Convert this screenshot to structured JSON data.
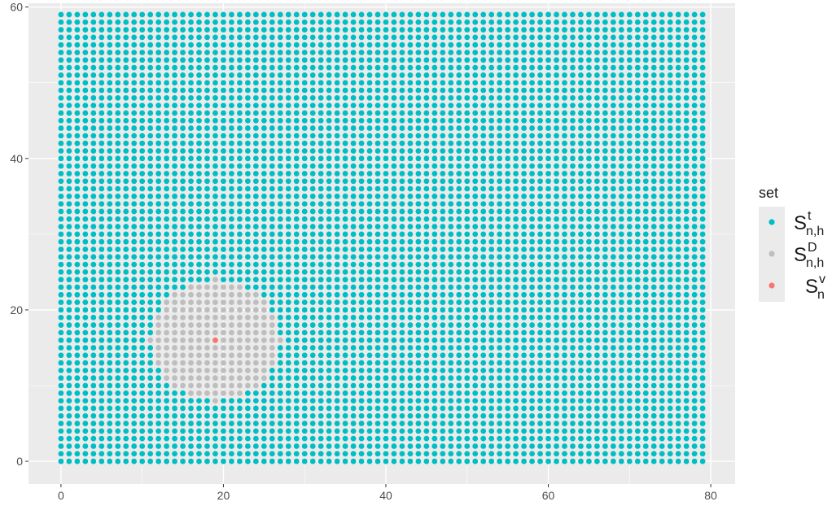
{
  "chart_data": {
    "type": "scatter",
    "title": "",
    "xlabel": "",
    "ylabel": "",
    "xlim": [
      -4,
      83
    ],
    "ylim": [
      -3,
      60.5
    ],
    "x_ticks": [
      0,
      20,
      40,
      60,
      80
    ],
    "y_ticks": [
      0,
      20,
      40,
      60
    ],
    "x_tick_labels": [
      "0",
      "20",
      "40",
      "60",
      "80"
    ],
    "y_tick_labels": [
      "0",
      "20",
      "40",
      "60"
    ],
    "grid": true,
    "grid_description": "integer lattice, x = 0..79, y = 0..59, step 1",
    "legend_position": "right",
    "legend_title": "set",
    "series": [
      {
        "key": "t",
        "main": "S",
        "sup": "t",
        "sub": "n,h",
        "color": "#00BFC4",
        "description": "all remaining grid points x = 0..79, y = 0..59"
      },
      {
        "key": "D",
        "main": "S",
        "sup": "D",
        "sub": "n,h",
        "color": "#BEBEBE",
        "description": "disc of radius 8 around (19, 16)",
        "center": [
          19,
          16
        ],
        "radius": 8
      },
      {
        "key": "v",
        "main": "S",
        "sup": "v",
        "sub": "n",
        "color": "#F8766D",
        "points": [
          [
            19,
            16
          ]
        ]
      }
    ],
    "grid_x": [
      0,
      79
    ],
    "grid_y": [
      0,
      59
    ]
  }
}
